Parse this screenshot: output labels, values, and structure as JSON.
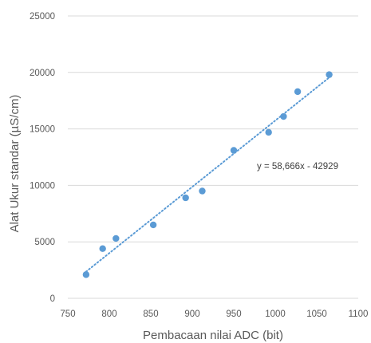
{
  "chart_data": {
    "type": "scatter",
    "title": "",
    "xlabel": "Pembacaan nilai ADC (bit)",
    "ylabel": "Alat Ukur standar (µS/cm)",
    "xlim": [
      750,
      1100
    ],
    "ylim": [
      0,
      25000
    ],
    "xticks": [
      750,
      800,
      850,
      900,
      950,
      1000,
      1050,
      1100
    ],
    "yticks": [
      0,
      5000,
      10000,
      15000,
      20000,
      25000
    ],
    "grid": {
      "horizontal": true,
      "vertical": false
    },
    "legend": "none",
    "series": [
      {
        "marker_color": "#5B9BD5",
        "points": [
          {
            "x": 772,
            "y": 2100
          },
          {
            "x": 792,
            "y": 4400
          },
          {
            "x": 808,
            "y": 5300
          },
          {
            "x": 853,
            "y": 6500
          },
          {
            "x": 892,
            "y": 8900
          },
          {
            "x": 912,
            "y": 9500
          },
          {
            "x": 950,
            "y": 13100
          },
          {
            "x": 992,
            "y": 14700
          },
          {
            "x": 1010,
            "y": 16100
          },
          {
            "x": 1027,
            "y": 18300
          },
          {
            "x": 1065,
            "y": 19800
          }
        ]
      }
    ],
    "trendline": {
      "style": "dotted",
      "color": "#5B9BD5",
      "slope": 58.666,
      "intercept": -42929,
      "x_range": [
        772,
        1065
      ],
      "equation_label": "y = 58,666x - 42929"
    }
  }
}
